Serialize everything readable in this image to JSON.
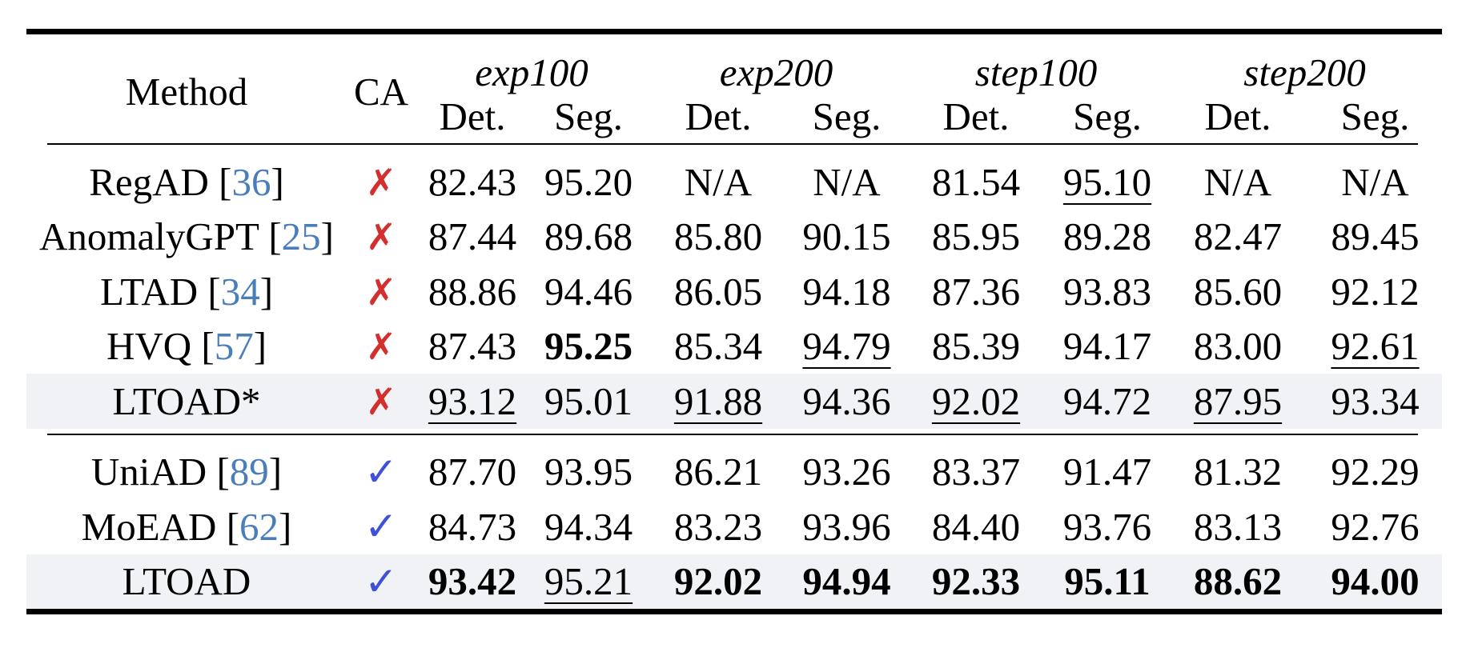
{
  "header": {
    "method": "Method",
    "ca": "CA",
    "groups": [
      "exp100",
      "exp200",
      "step100",
      "step200"
    ],
    "sub": [
      "Det.",
      "Seg.",
      "Det.",
      "Seg.",
      "Det.",
      "Seg.",
      "Det.",
      "Seg."
    ]
  },
  "marks": {
    "cross": "✗",
    "check": "✓"
  },
  "section1": [
    {
      "name": "RegAD",
      "ref": "36",
      "ca": "cross",
      "values": [
        "82.43",
        "95.20",
        "N/A",
        "N/A",
        "81.54",
        "95.10",
        "N/A",
        "N/A"
      ],
      "bold": [],
      "underline": [
        5
      ],
      "shaded": false
    },
    {
      "name": "AnomalyGPT",
      "ref": "25",
      "ca": "cross",
      "values": [
        "87.44",
        "89.68",
        "85.80",
        "90.15",
        "85.95",
        "89.28",
        "82.47",
        "89.45"
      ],
      "bold": [],
      "underline": [],
      "shaded": false
    },
    {
      "name": "LTAD",
      "ref": "34",
      "ca": "cross",
      "values": [
        "88.86",
        "94.46",
        "86.05",
        "94.18",
        "87.36",
        "93.83",
        "85.60",
        "92.12"
      ],
      "bold": [],
      "underline": [],
      "shaded": false
    },
    {
      "name": "HVQ",
      "ref": "57",
      "ca": "cross",
      "values": [
        "87.43",
        "95.25",
        "85.34",
        "94.79",
        "85.39",
        "94.17",
        "83.00",
        "92.61"
      ],
      "bold": [
        1
      ],
      "underline": [
        3,
        7
      ],
      "shaded": false
    },
    {
      "name": "LTOAD*",
      "ref": "",
      "ca": "cross",
      "values": [
        "93.12",
        "95.01",
        "91.88",
        "94.36",
        "92.02",
        "94.72",
        "87.95",
        "93.34"
      ],
      "bold": [],
      "underline": [
        0,
        2,
        4,
        6
      ],
      "shaded": true
    }
  ],
  "section2": [
    {
      "name": "UniAD",
      "ref": "89",
      "ca": "check",
      "values": [
        "87.70",
        "93.95",
        "86.21",
        "93.26",
        "83.37",
        "91.47",
        "81.32",
        "92.29"
      ],
      "bold": [],
      "underline": [],
      "shaded": false
    },
    {
      "name": "MoEAD",
      "ref": "62",
      "ca": "check",
      "values": [
        "84.73",
        "94.34",
        "83.23",
        "93.96",
        "84.40",
        "93.76",
        "83.13",
        "92.76"
      ],
      "bold": [],
      "underline": [],
      "shaded": false
    },
    {
      "name": "LTOAD",
      "ref": "",
      "ca": "check",
      "values": [
        "93.42",
        "95.21",
        "92.02",
        "94.94",
        "92.33",
        "95.11",
        "88.62",
        "94.00"
      ],
      "bold": [
        0,
        2,
        3,
        4,
        5,
        6,
        7
      ],
      "underline": [
        1
      ],
      "shaded": true
    }
  ]
}
